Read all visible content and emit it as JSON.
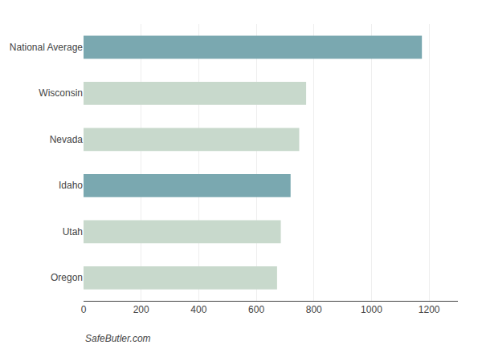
{
  "chart_data": {
    "type": "bar",
    "orientation": "horizontal",
    "categories": [
      "Oregon",
      "Utah",
      "Idaho",
      "Nevada",
      "Wisconsin",
      "National Average"
    ],
    "values": [
      672,
      685,
      719,
      749,
      773,
      1175
    ],
    "colors": [
      "#c8d9cc",
      "#c8d9cc",
      "#7aa8b0",
      "#c8d9cc",
      "#c8d9cc",
      "#7aa8b0"
    ],
    "xlim": [
      0,
      1300
    ],
    "xticks": [
      0,
      200,
      400,
      600,
      800,
      1000,
      1200
    ],
    "grid": true,
    "annotations": [
      "SafeButler.com"
    ]
  }
}
